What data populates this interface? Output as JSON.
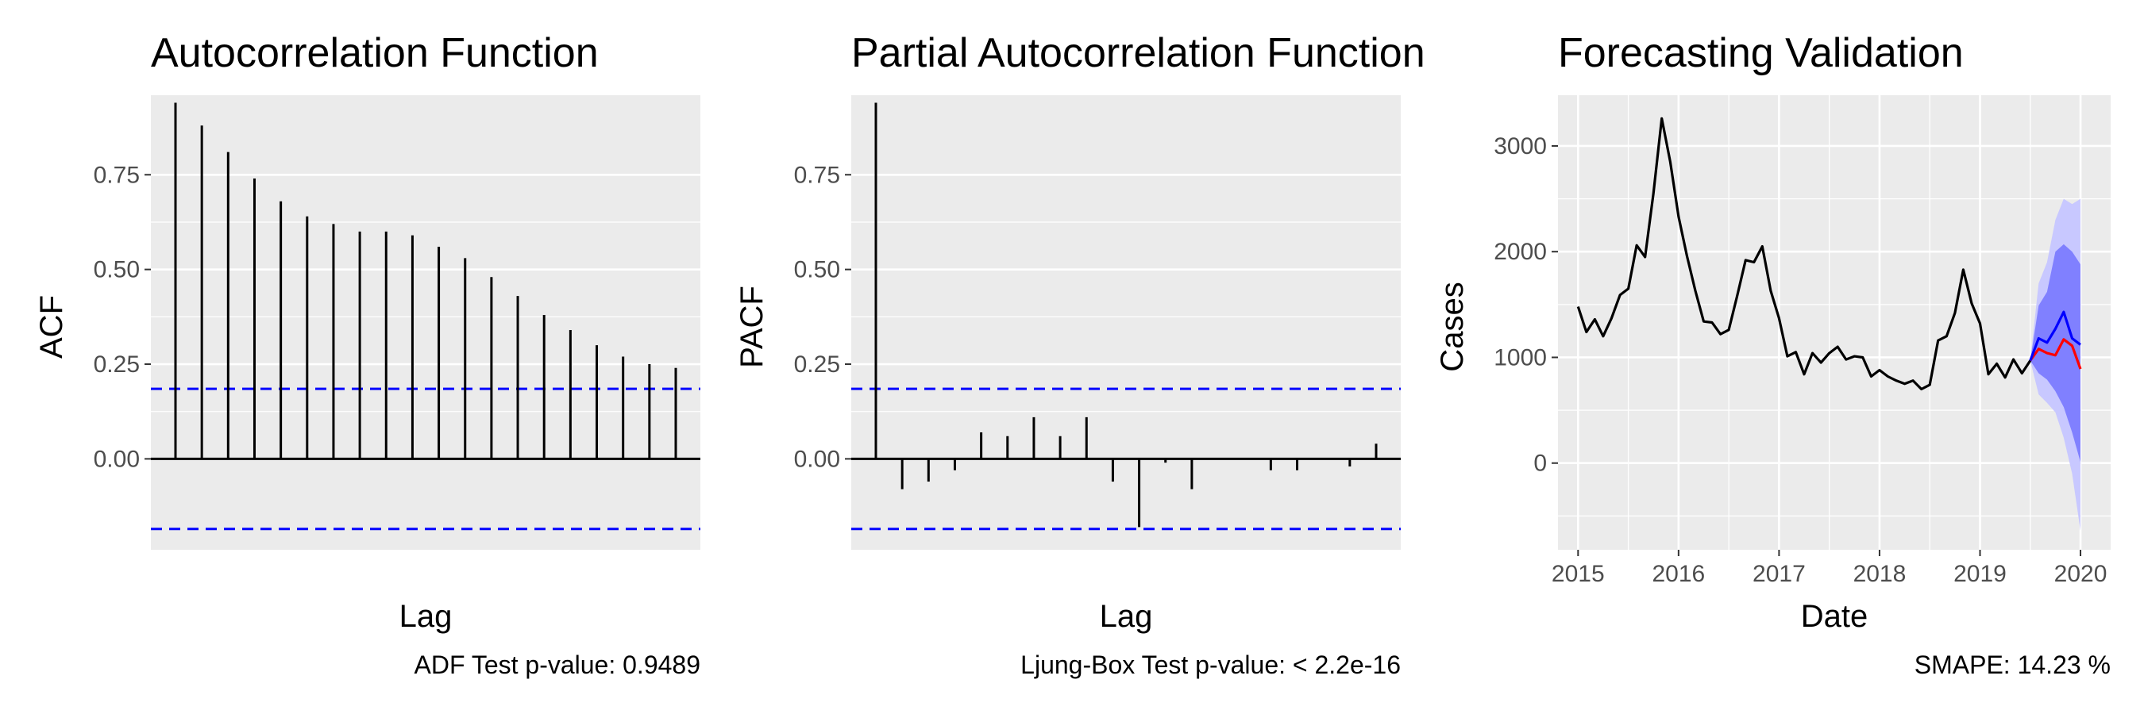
{
  "chart_data": [
    {
      "type": "bar",
      "title": "Autocorrelation Function",
      "xlabel": "Lag",
      "ylabel": "ACF",
      "caption": "ADF Test p-value: 0.9489",
      "ylim": [
        -0.24,
        0.96
      ],
      "yticks": [
        0,
        0.25,
        0.5,
        0.75
      ],
      "ytick_labels": [
        "0.00",
        "0.25",
        "0.50",
        "0.75"
      ],
      "lags": [
        1,
        2,
        3,
        4,
        5,
        6,
        7,
        8,
        9,
        10,
        11,
        12,
        13,
        14,
        15,
        16,
        17,
        18,
        19,
        20
      ],
      "values": [
        0.94,
        0.88,
        0.81,
        0.74,
        0.68,
        0.64,
        0.62,
        0.6,
        0.6,
        0.59,
        0.56,
        0.53,
        0.48,
        0.43,
        0.38,
        0.34,
        0.3,
        0.27,
        0.25,
        0.24
      ],
      "confidence_bounds": [
        0.185,
        -0.185
      ],
      "grid": true
    },
    {
      "type": "bar",
      "title": "Partial Autocorrelation Function",
      "xlabel": "Lag",
      "ylabel": "PACF",
      "caption": "Ljung-Box Test p-value: < 2.2e-16",
      "ylim": [
        -0.24,
        0.96
      ],
      "yticks": [
        0,
        0.25,
        0.5,
        0.75
      ],
      "ytick_labels": [
        "0.00",
        "0.25",
        "0.50",
        "0.75"
      ],
      "lags": [
        1,
        2,
        3,
        4,
        5,
        6,
        7,
        8,
        9,
        10,
        11,
        12,
        13,
        14,
        15,
        16,
        17,
        18,
        19,
        20
      ],
      "values": [
        0.94,
        -0.08,
        -0.06,
        -0.03,
        0.07,
        0.06,
        0.11,
        0.06,
        0.11,
        -0.06,
        -0.18,
        -0.01,
        -0.08,
        0.0,
        0.0,
        -0.03,
        -0.03,
        0.0,
        -0.02,
        0.04
      ],
      "confidence_bounds": [
        0.185,
        -0.185
      ],
      "grid": true
    },
    {
      "type": "line",
      "title": "Forecasting Validation",
      "xlabel": "Date",
      "ylabel": "Cases",
      "caption": "SMAPE:  14.23 %",
      "xlim": [
        2014.8,
        2020.3
      ],
      "ylim": [
        -820,
        3480
      ],
      "xticks": [
        2015,
        2016,
        2017,
        2018,
        2019,
        2020
      ],
      "xtick_labels": [
        "2015",
        "2016",
        "2017",
        "2018",
        "2019",
        "2020"
      ],
      "yticks": [
        0,
        1000,
        2000,
        3000
      ],
      "ytick_labels": [
        "0",
        "1000",
        "2000",
        "3000"
      ],
      "grid": true,
      "series": [
        {
          "color": "#000000",
          "x": [
            2015.0,
            2015.083,
            2015.167,
            2015.25,
            2015.333,
            2015.417,
            2015.5,
            2015.583,
            2015.667,
            2015.75,
            2015.833,
            2015.917,
            2016.0,
            2016.083,
            2016.167,
            2016.25,
            2016.333,
            2016.417,
            2016.5,
            2016.583,
            2016.667,
            2016.75,
            2016.833,
            2016.917,
            2017.0,
            2017.083,
            2017.167,
            2017.25,
            2017.333,
            2017.417,
            2017.5,
            2017.583,
            2017.667,
            2017.75,
            2017.833,
            2017.917,
            2018.0,
            2018.083,
            2018.167,
            2018.25,
            2018.333,
            2018.417,
            2018.5,
            2018.583,
            2018.667,
            2018.75,
            2018.833,
            2018.917,
            2019.0,
            2019.083,
            2019.167,
            2019.25,
            2019.333,
            2019.417,
            2019.5
          ],
          "y": [
            1480,
            1240,
            1360,
            1200,
            1370,
            1590,
            1650,
            2060,
            1950,
            2550,
            3260,
            2850,
            2330,
            1960,
            1630,
            1340,
            1330,
            1220,
            1260,
            1580,
            1920,
            1900,
            2050,
            1630,
            1370,
            1010,
            1050,
            840,
            1040,
            950,
            1040,
            1100,
            980,
            1010,
            1000,
            820,
            880,
            820,
            780,
            750,
            780,
            700,
            740,
            1160,
            1200,
            1420,
            1830,
            1510,
            1320,
            840,
            940,
            810,
            980,
            850,
            970
          ]
        },
        {
          "color": "#ff0000",
          "x": [
            2019.5,
            2019.583,
            2019.667,
            2019.75,
            2019.833,
            2019.917,
            2020.0
          ],
          "y": [
            970,
            1080,
            1040,
            1020,
            1170,
            1110,
            890
          ]
        },
        {
          "color": "#0000ff",
          "x": [
            2019.5,
            2019.583,
            2019.667,
            2019.75,
            2019.833,
            2019.917,
            2020.0
          ],
          "y": [
            970,
            1180,
            1140,
            1270,
            1430,
            1180,
            1120
          ]
        }
      ],
      "bands": [
        {
          "color": "#c8c8ff",
          "x": [
            2019.5,
            2019.583,
            2019.667,
            2019.75,
            2019.833,
            2019.917,
            2020.0
          ],
          "lower": [
            970,
            650,
            570,
            480,
            240,
            -100,
            -640
          ],
          "upper": [
            970,
            1700,
            1900,
            2300,
            2500,
            2450,
            2500
          ]
        },
        {
          "color": "#8080ff",
          "x": [
            2019.5,
            2019.583,
            2019.667,
            2019.75,
            2019.833,
            2019.917,
            2020.0
          ],
          "lower": [
            970,
            850,
            790,
            680,
            530,
            290,
            10
          ],
          "upper": [
            970,
            1490,
            1620,
            2000,
            2070,
            2000,
            1880
          ]
        }
      ]
    }
  ]
}
